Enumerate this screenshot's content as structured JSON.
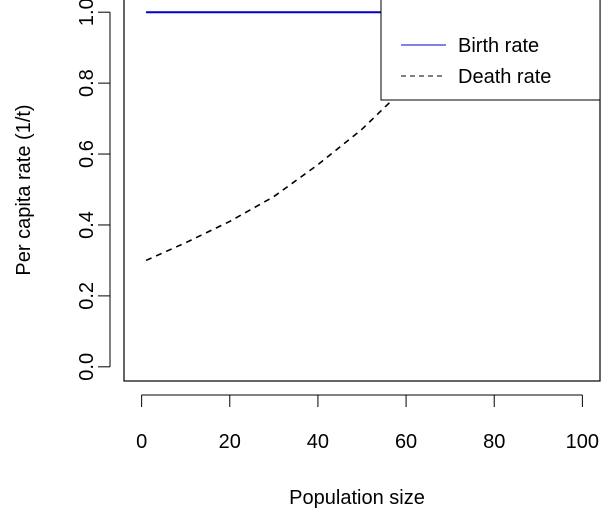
{
  "chart_data": {
    "type": "line",
    "xlabel": "Population size",
    "ylabel": "Per capita rate (1/t)",
    "xlim": [
      -4,
      104
    ],
    "ylim": [
      -0.04,
      1.04
    ],
    "xticks": [
      0,
      20,
      40,
      60,
      80,
      100
    ],
    "yticks": [
      0.0,
      0.2,
      0.4,
      0.6,
      0.8,
      1.0
    ],
    "xtick_labels": [
      "0",
      "20",
      "40",
      "60",
      "80",
      "100"
    ],
    "ytick_labels": [
      "0.0",
      "0.2",
      "0.4",
      "0.6",
      "0.8",
      "1.0"
    ],
    "grid": false,
    "legend_position": "top-right",
    "series": [
      {
        "name": "Birth rate",
        "style": "solid",
        "color": "#0000cc",
        "x": [
          1,
          100
        ],
        "y": [
          1.0,
          1.0
        ]
      },
      {
        "name": "Death rate",
        "style": "dashed",
        "color": "#000000",
        "x": [
          1,
          10,
          20,
          30,
          40,
          50,
          60,
          70,
          74
        ],
        "y": [
          0.3,
          0.35,
          0.41,
          0.48,
          0.57,
          0.67,
          0.79,
          0.93,
          1.0
        ]
      }
    ]
  }
}
